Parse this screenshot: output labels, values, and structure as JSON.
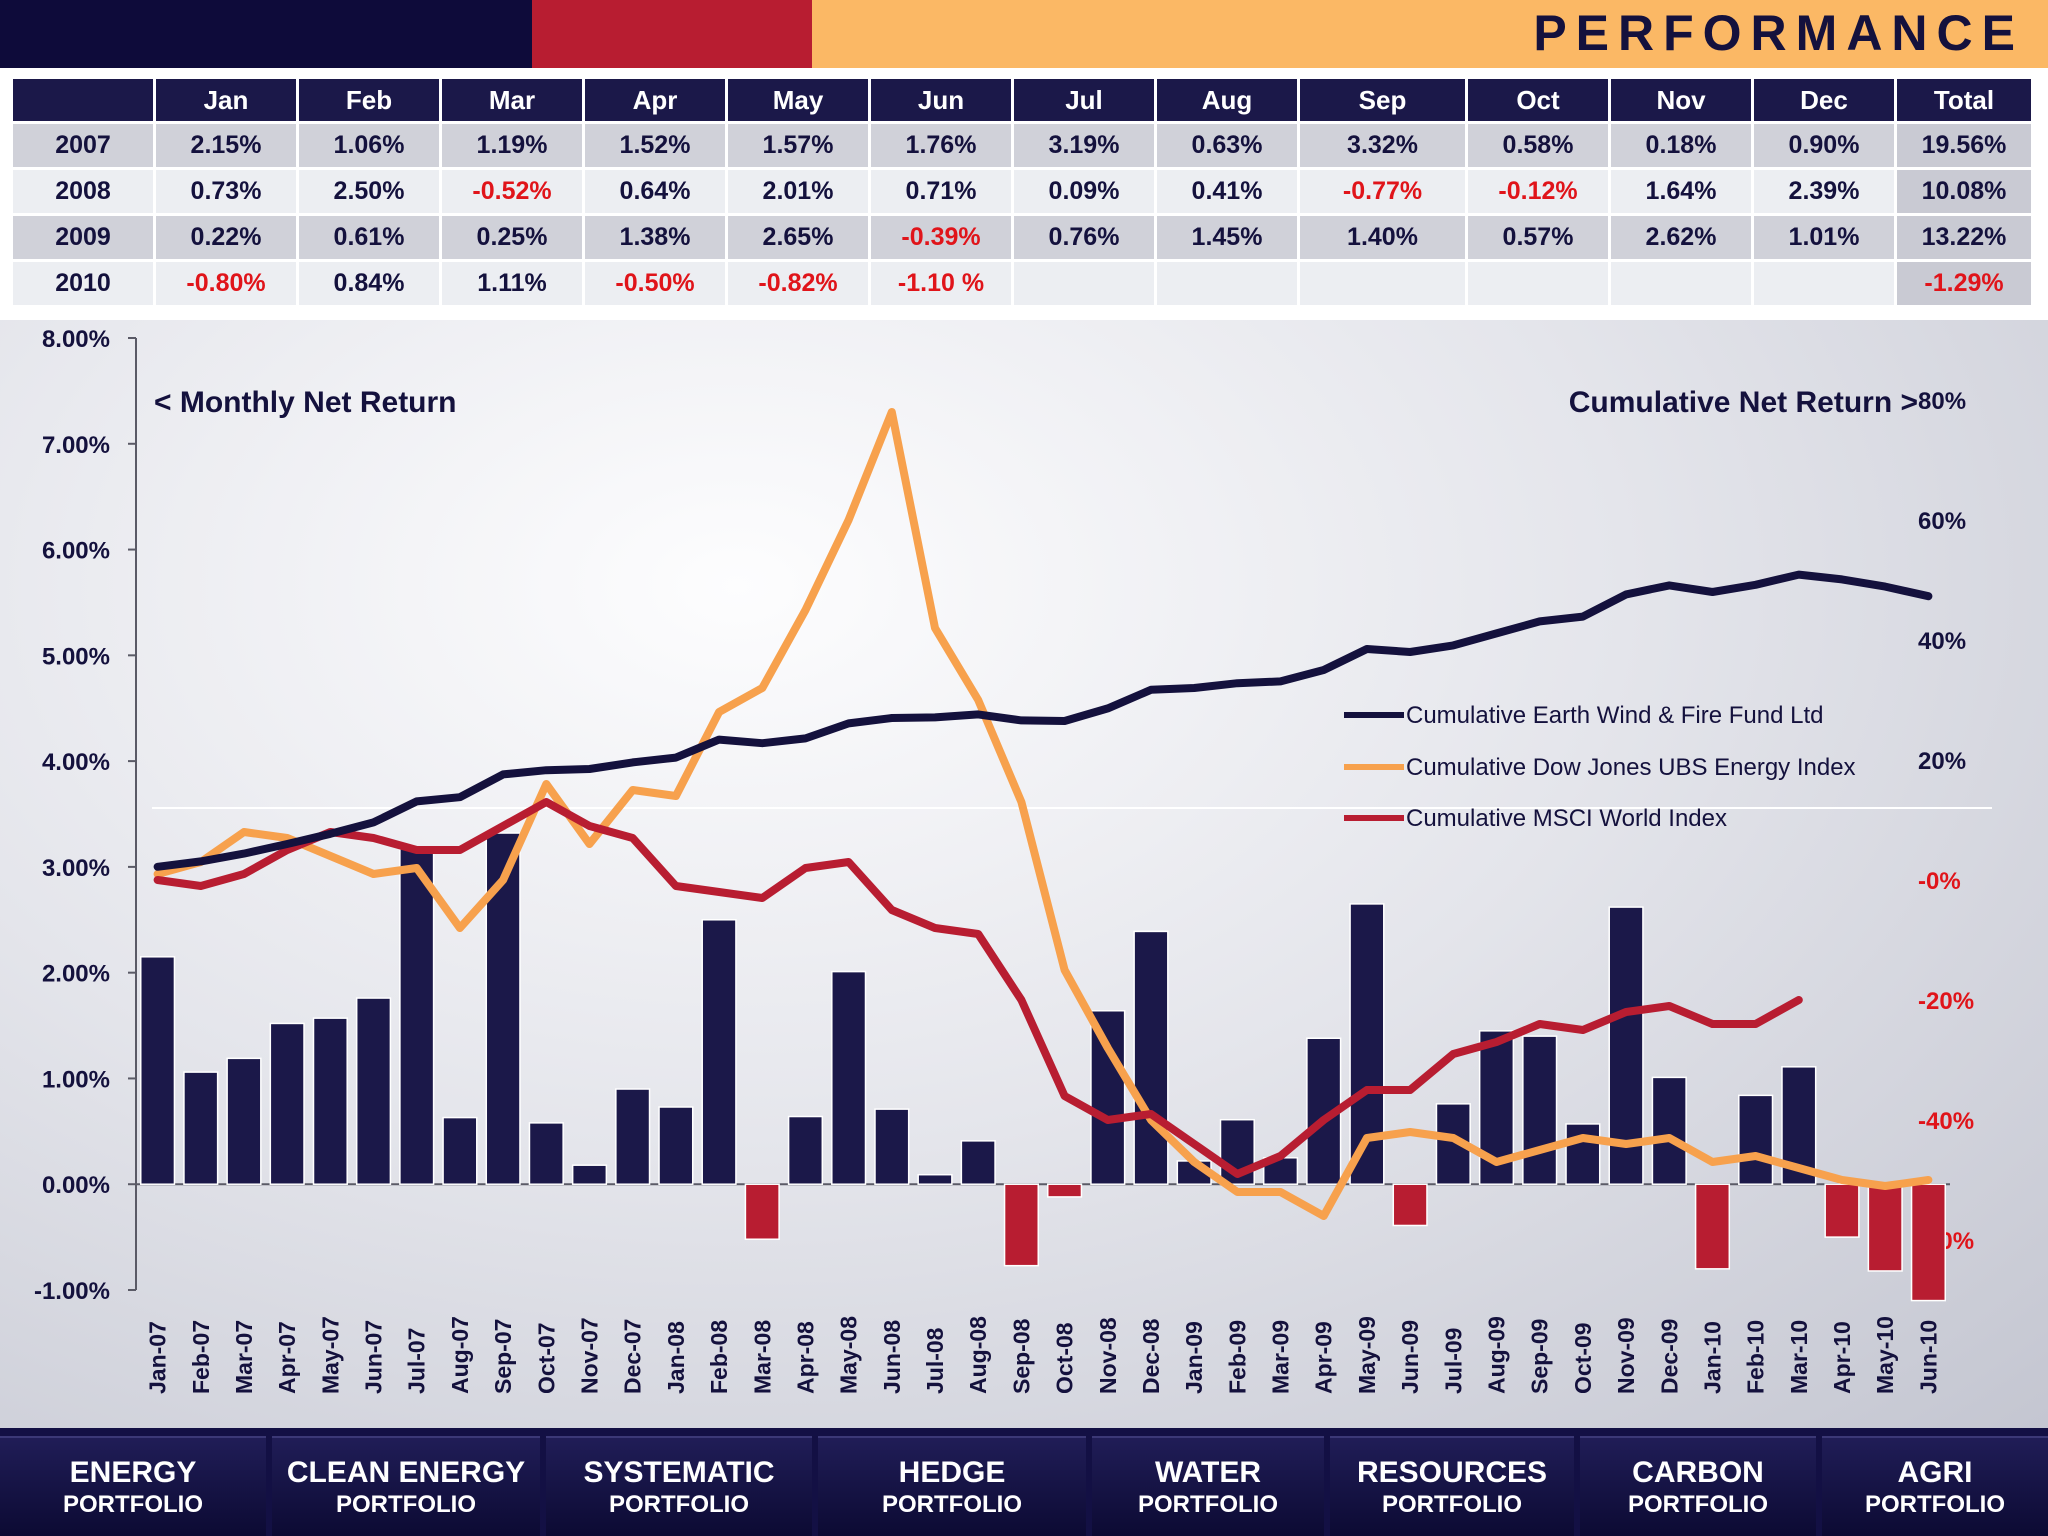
{
  "header": {
    "title": "PERFORMANCE",
    "colors": {
      "navy": "#0e0b3a",
      "red": "#b81d31",
      "orange": "#fbb865"
    }
  },
  "table": {
    "columns": [
      "",
      "Jan",
      "Feb",
      "Mar",
      "Apr",
      "May",
      "Jun",
      "Jul",
      "Aug",
      "Sep",
      "Oct",
      "Nov",
      "Dec",
      "Total"
    ],
    "rows": [
      {
        "year": "2007",
        "cells": [
          "2.15%",
          "1.06%",
          "1.19%",
          "1.52%",
          "1.57%",
          "1.76%",
          "3.19%",
          "0.63%",
          "3.32%",
          "0.58%",
          "0.18%",
          "0.90%",
          "19.56%"
        ]
      },
      {
        "year": "2008",
        "cells": [
          "0.73%",
          "2.50%",
          "-0.52%",
          "0.64%",
          "2.01%",
          "0.71%",
          "0.09%",
          "0.41%",
          "-0.77%",
          "-0.12%",
          "1.64%",
          "2.39%",
          "10.08%"
        ]
      },
      {
        "year": "2009",
        "cells": [
          "0.22%",
          "0.61%",
          "0.25%",
          "1.38%",
          "2.65%",
          "-0.39%",
          "0.76%",
          "1.45%",
          "1.40%",
          "0.57%",
          "2.62%",
          "1.01%",
          "13.22%"
        ]
      },
      {
        "year": "2010",
        "cells": [
          "-0.80%",
          "0.84%",
          "1.11%",
          "-0.50%",
          "-0.82%",
          "-1.10 %",
          "",
          "",
          "",
          "",
          "",
          "",
          "-1.29%"
        ]
      }
    ]
  },
  "chart_data": {
    "type": "bar+line",
    "categories": [
      "Jan-07",
      "Feb-07",
      "Mar-07",
      "Apr-07",
      "May-07",
      "Jun-07",
      "Jul-07",
      "Aug-07",
      "Sep-07",
      "Oct-07",
      "Nov-07",
      "Dec-07",
      "Jan-08",
      "Feb-08",
      "Mar-08",
      "Apr-08",
      "May-08",
      "Jun-08",
      "Jul-08",
      "Aug-08",
      "Sep-08",
      "Oct-08",
      "Nov-08",
      "Dec-08",
      "Jan-09",
      "Feb-09",
      "Mar-09",
      "Apr-09",
      "May-09",
      "Jun-09",
      "Jul-09",
      "Aug-09",
      "Sep-09",
      "Oct-09",
      "Nov-09",
      "Dec-09",
      "Jan-10",
      "Feb-10",
      "Mar-10",
      "Apr-10",
      "May-10",
      "Jun-10"
    ],
    "bars": {
      "name": "Monthly Net Return",
      "axis": "left",
      "values": [
        2.15,
        1.06,
        1.19,
        1.52,
        1.57,
        1.76,
        3.19,
        0.63,
        3.32,
        0.58,
        0.18,
        0.9,
        0.73,
        2.5,
        -0.52,
        0.64,
        2.01,
        0.71,
        0.09,
        0.41,
        -0.77,
        -0.12,
        1.64,
        2.39,
        0.22,
        0.61,
        0.25,
        1.38,
        2.65,
        -0.39,
        0.76,
        1.45,
        1.4,
        0.57,
        2.62,
        1.01,
        -0.8,
        0.84,
        1.11,
        -0.5,
        -0.82,
        -1.1
      ],
      "pos_color": "#1b1849",
      "neg_color": "#b81d31"
    },
    "series": [
      {
        "name": "Cumulative Earth Wind & Fire Fund Ltd",
        "axis": "right",
        "color": "#14113d",
        "values": [
          2.2,
          3.1,
          4.4,
          6.0,
          7.7,
          9.6,
          13.1,
          13.8,
          17.6,
          18.3,
          18.5,
          19.6,
          20.4,
          23.4,
          22.8,
          23.6,
          26.1,
          27.0,
          27.1,
          27.6,
          26.6,
          26.5,
          28.6,
          31.7,
          32.0,
          32.8,
          33.1,
          35.0,
          38.5,
          38.0,
          39.1,
          41.1,
          43.1,
          43.9,
          47.6,
          49.1,
          48.0,
          49.2,
          50.9,
          50.1,
          48.9,
          47.3
        ]
      },
      {
        "name": "Cumulative Dow Jones UBS Energy Index",
        "axis": "right",
        "color": "#f7a14d",
        "values": [
          1,
          3,
          8,
          7,
          4,
          1,
          2,
          -8,
          0,
          16,
          6,
          15,
          14,
          28,
          32,
          45,
          60,
          78,
          42,
          30,
          13,
          -15,
          -28,
          -40,
          -47,
          -52,
          -52,
          -56,
          -43,
          -42,
          -43,
          -47,
          -45,
          -43,
          -44,
          -43,
          -47,
          -46,
          -48,
          -50,
          -51,
          -50
        ]
      },
      {
        "name": "Cumulative MSCI World Index",
        "axis": "right",
        "color": "#b81d31",
        "values": [
          0,
          -1,
          1,
          5,
          8,
          7,
          5,
          5,
          9,
          13,
          9,
          7,
          -1,
          -2,
          -3,
          2,
          3,
          -5,
          -8,
          -9,
          -20,
          -36,
          -40,
          -39,
          -44,
          -49,
          -46,
          -40,
          -35,
          -35,
          -29,
          -27,
          -24,
          -25,
          -22,
          -21,
          -24,
          -24,
          -20,
          null,
          null,
          null
        ]
      }
    ],
    "left_axis": {
      "label": "<  Monthly Net Return",
      "min": -1,
      "max": 8,
      "ticks": [
        "-1.00%",
        "0.00%",
        "1.00%",
        "2.00%",
        "3.00%",
        "4.00%",
        "5.00%",
        "6.00%",
        "7.00%",
        "8.00%"
      ]
    },
    "right_axis": {
      "label": "Cumulative Net Return  >",
      "min": -60,
      "max": 80,
      "ticks": [
        "-60%",
        "-40%",
        "-20%",
        "-0%",
        "20%",
        "40%",
        "60%",
        "80%"
      ]
    },
    "legend": "center-right",
    "grid": false
  },
  "footer": {
    "items": [
      {
        "line1": "ENERGY",
        "line2": "PORTFOLIO"
      },
      {
        "line1": "CLEAN ENERGY",
        "line2": "PORTFOLIO"
      },
      {
        "line1": "SYSTEMATIC",
        "line2": "PORTFOLIO"
      },
      {
        "line1": "HEDGE",
        "line2": "PORTFOLIO"
      },
      {
        "line1": "WATER",
        "line2": "PORTFOLIO"
      },
      {
        "line1": "RESOURCES",
        "line2": "PORTFOLIO"
      },
      {
        "line1": "CARBON",
        "line2": "PORTFOLIO"
      },
      {
        "line1": "AGRI",
        "line2": "PORTFOLIO"
      }
    ]
  }
}
